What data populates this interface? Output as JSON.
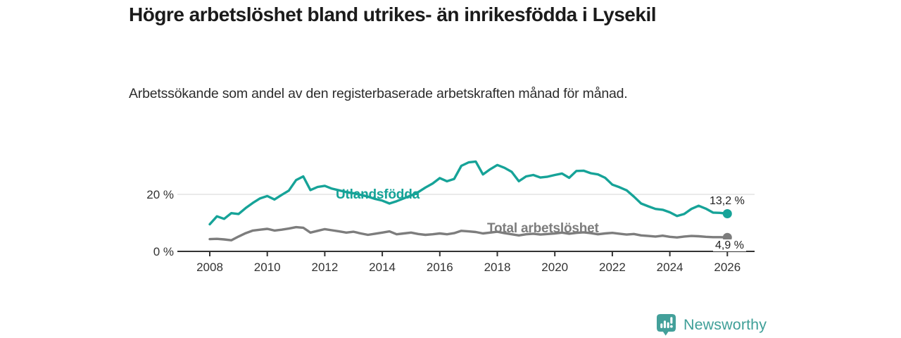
{
  "chart_data": {
    "type": "line",
    "title": "Högre arbetslöshet bland utrikes- än inrikesfödda i Lysekil",
    "subtitle": "Arbetssökande som andel av den registerbaserade arbetskraften månad för månad.",
    "unit": "%",
    "x_start": 2008,
    "x_step": 0.25,
    "xlim": [
      2007.0,
      2026.9
    ],
    "ylim": [
      0,
      33
    ],
    "grid": "single light horizontal gridline at 20 %",
    "legend": "inline labels next to lines",
    "axis_color": "#333333",
    "grid_color": "#dddddd",
    "tick_label_color": "#333333",
    "x_ticks": [
      2008,
      2010,
      2012,
      2014,
      2016,
      2018,
      2020,
      2022,
      2024,
      2026
    ],
    "y_ticks": [
      {
        "value": 0,
        "label": "0 %"
      },
      {
        "value": 20,
        "label": "20 %"
      }
    ],
    "series": [
      {
        "name": "Utlandsfödda",
        "color": "#16a398",
        "end_value": 13.2,
        "end_label": "13,2 %",
        "values": [
          9.5,
          12.3,
          11.4,
          13.4,
          13.1,
          15.2,
          17.0,
          18.6,
          19.4,
          18.2,
          19.8,
          21.3,
          25.0,
          26.3,
          21.5,
          22.6,
          23.0,
          22.0,
          21.4,
          20.8,
          20.4,
          19.8,
          19.2,
          18.4,
          17.8,
          16.8,
          17.6,
          18.6,
          19.6,
          20.8,
          22.4,
          23.8,
          25.7,
          24.6,
          25.4,
          30.0,
          31.2,
          31.5,
          27.0,
          28.8,
          30.3,
          29.3,
          27.9,
          24.6,
          26.3,
          26.8,
          25.9,
          26.2,
          26.8,
          27.3,
          25.8,
          28.2,
          28.3,
          27.4,
          27.0,
          25.8,
          23.4,
          22.5,
          21.4,
          19.2,
          16.8,
          15.8,
          14.9,
          14.6,
          13.7,
          12.4,
          13.1,
          14.9,
          16.0,
          15.0,
          13.6,
          13.5,
          13.2
        ]
      },
      {
        "name": "Total arbetslöshet",
        "color": "#7d7d7d",
        "end_value": 4.9,
        "end_label": "4,9 %",
        "values": [
          4.3,
          4.4,
          4.2,
          3.9,
          5.2,
          6.4,
          7.3,
          7.6,
          7.9,
          7.3,
          7.6,
          8.0,
          8.5,
          8.3,
          6.6,
          7.2,
          7.8,
          7.4,
          7.0,
          6.6,
          6.9,
          6.3,
          5.8,
          6.2,
          6.6,
          7.0,
          6.0,
          6.3,
          6.6,
          6.1,
          5.8,
          6.0,
          6.3,
          6.0,
          6.4,
          7.2,
          7.0,
          6.8,
          6.3,
          6.6,
          6.9,
          6.4,
          6.0,
          5.6,
          6.0,
          6.2,
          5.9,
          6.1,
          6.3,
          6.6,
          6.2,
          6.5,
          6.7,
          6.4,
          6.0,
          6.3,
          6.5,
          6.2,
          5.9,
          6.1,
          5.6,
          5.4,
          5.2,
          5.5,
          5.1,
          4.9,
          5.2,
          5.4,
          5.3,
          5.1,
          5.0,
          5.0,
          4.9
        ]
      }
    ]
  },
  "branding": {
    "name": "Newsworthy",
    "icon": "newsworthy-speech-bubble-bar-chart-icon",
    "color": "#43a09a"
  }
}
